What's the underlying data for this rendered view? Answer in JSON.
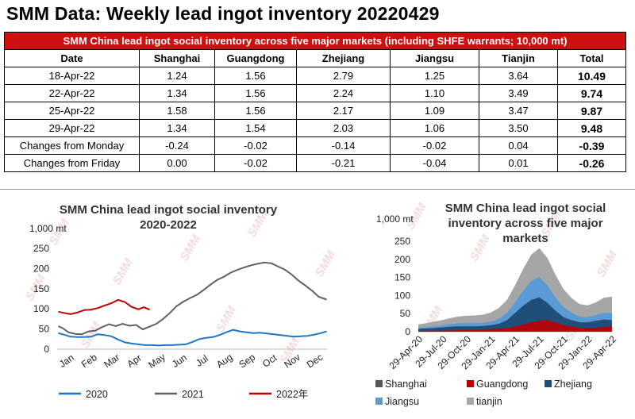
{
  "title": "SMM Data: Weekly lead ingot inventory 20220429",
  "table": {
    "banner": "SMM China lead ingot social inventory across five major markets (including SHFE warrants; 10,000 mt)",
    "headers": [
      "Date",
      "Shanghai",
      "Guangdong",
      "Zhejiang",
      "Jiangsu",
      "Tianjin",
      "Total"
    ],
    "rows": [
      [
        "18-Apr-22",
        "1.24",
        "1.56",
        "2.79",
        "1.25",
        "3.64",
        "10.49"
      ],
      [
        "22-Apr-22",
        "1.34",
        "1.56",
        "2.24",
        "1.10",
        "3.49",
        "9.74"
      ],
      [
        "25-Apr-22",
        "1.58",
        "1.56",
        "2.17",
        "1.09",
        "3.47",
        "9.87"
      ],
      [
        "29-Apr-22",
        "1.34",
        "1.54",
        "2.03",
        "1.06",
        "3.50",
        "9.48"
      ],
      [
        "Changes from Monday",
        "-0.24",
        "-0.02",
        "-0.14",
        "-0.02",
        "0.04",
        "-0.39"
      ],
      [
        "Changes from Friday",
        "0.00",
        "-0.02",
        "-0.21",
        "-0.04",
        "0.01",
        "-0.26"
      ]
    ]
  },
  "colors": {
    "banner": "#cc1111",
    "s2020": "#1f77c4",
    "s2021": "#606060",
    "s2022": "#c00000",
    "shanghai": "#595959",
    "guangdong": "#c00000",
    "zhejiang": "#1f4e79",
    "jiangsu": "#5b9bd5",
    "tianjin": "#a6a6a6"
  },
  "watermark": "SMM",
  "chart_data": [
    {
      "type": "line",
      "title": "SMM China lead ingot social inventory 2020-2022",
      "unit_label": "1,000 mt",
      "categories": [
        "Jan",
        "Feb",
        "Mar",
        "Apr",
        "May",
        "Jun",
        "Jul",
        "Aug",
        "Sep",
        "Oct",
        "Nov",
        "Dec"
      ],
      "ylim": [
        0,
        250
      ],
      "yticks": [
        "0",
        "50",
        "100",
        "150",
        "200",
        "250"
      ],
      "x_range": [
        0,
        12
      ],
      "series": [
        {
          "name": "2020",
          "x": [
            0.05,
            0.3,
            0.6,
            0.9,
            1.2,
            1.5,
            1.8,
            2.1,
            2.4,
            2.7,
            3.0,
            3.3,
            3.6,
            3.9,
            4.2,
            4.5,
            4.8,
            5.1,
            5.4,
            5.7,
            6.0,
            6.3,
            6.6,
            6.9,
            7.2,
            7.5,
            7.8,
            8.1,
            8.4,
            8.7,
            9.0,
            9.3,
            9.6,
            9.9,
            10.2,
            10.5,
            10.8,
            11.1,
            11.4,
            11.7,
            11.95
          ],
          "values": [
            40,
            36,
            31,
            30,
            30,
            31,
            37,
            35,
            32,
            24,
            17,
            14,
            12,
            10,
            10,
            9,
            10,
            10,
            11,
            12,
            18,
            25,
            28,
            30,
            35,
            42,
            48,
            44,
            42,
            40,
            41,
            39,
            37,
            35,
            33,
            31,
            32,
            33,
            36,
            40,
            44
          ]
        },
        {
          "name": "2021",
          "x": [
            0.05,
            0.25,
            0.5,
            0.8,
            1.1,
            1.4,
            1.7,
            2.0,
            2.3,
            2.6,
            2.9,
            3.2,
            3.5,
            3.8,
            4.1,
            4.4,
            4.7,
            5.0,
            5.3,
            5.6,
            5.9,
            6.2,
            6.5,
            6.8,
            7.1,
            7.4,
            7.7,
            8.0,
            8.3,
            8.6,
            8.9,
            9.2,
            9.5,
            9.8,
            10.1,
            10.4,
            10.7,
            11.0,
            11.3,
            11.6,
            11.95
          ],
          "values": [
            57,
            52,
            42,
            38,
            37,
            44,
            46,
            55,
            62,
            57,
            63,
            58,
            60,
            49,
            56,
            63,
            75,
            90,
            107,
            118,
            127,
            135,
            147,
            160,
            172,
            180,
            190,
            197,
            203,
            208,
            212,
            215,
            213,
            205,
            197,
            185,
            170,
            158,
            145,
            130,
            123
          ]
        },
        {
          "name": "2022年",
          "x": [
            0.05,
            0.3,
            0.6,
            0.9,
            1.2,
            1.5,
            1.8,
            2.1,
            2.4,
            2.7,
            3.0,
            3.3,
            3.6,
            3.85,
            4.1
          ],
          "values": [
            93,
            90,
            87,
            91,
            97,
            98,
            102,
            108,
            114,
            122,
            117,
            105,
            99,
            104,
            98
          ]
        }
      ],
      "legend": [
        "2020",
        "2021",
        "2022年"
      ],
      "legend_position": "bottom"
    },
    {
      "type": "area",
      "title": "SMM China lead ingot social inventory across five major markets",
      "unit_label": "1,000 mt",
      "categories": [
        "29-Apr-20",
        "29-Jul-20",
        "29-Oct-20",
        "29-Jan-21",
        "29-Apr-21",
        "29-Jul-21",
        "29-Oct-21",
        "29-Jan-22",
        "29-Apr-22"
      ],
      "ylim": [
        0,
        250
      ],
      "yticks": [
        "0",
        "50",
        "100",
        "150",
        "200",
        "250"
      ],
      "x_range": [
        0,
        24
      ],
      "x": [
        0,
        1,
        2,
        3,
        4,
        5,
        6,
        7,
        8,
        9,
        10,
        11,
        12,
        13,
        14,
        15,
        16,
        17,
        18,
        19,
        20,
        21,
        22,
        23,
        24
      ],
      "series": [
        {
          "name": "Shanghai",
          "values": [
            2,
            2,
            2,
            2,
            3,
            3,
            3,
            3,
            3,
            4,
            4,
            4,
            5,
            6,
            7,
            8,
            8,
            7,
            6,
            5,
            4,
            4,
            4,
            5,
            5
          ]
        },
        {
          "name": "Guangdong",
          "values": [
            2,
            3,
            3,
            3,
            4,
            4,
            5,
            5,
            6,
            7,
            8,
            10,
            14,
            20,
            26,
            30,
            32,
            26,
            18,
            14,
            11,
            11,
            11,
            13,
            15
          ]
        },
        {
          "name": "Zhejiang",
          "values": [
            8,
            9,
            10,
            12,
            14,
            15,
            15,
            15,
            16,
            18,
            22,
            32,
            52,
            72,
            88,
            95,
            80,
            58,
            40,
            32,
            26,
            26,
            30,
            34,
            32
          ]
        },
        {
          "name": "Jiangsu",
          "values": [
            3,
            4,
            5,
            6,
            7,
            8,
            9,
            9,
            9,
            10,
            14,
            20,
            30,
            42,
            52,
            56,
            48,
            36,
            28,
            20,
            15,
            14,
            16,
            18,
            20
          ]
        },
        {
          "name": "tianjin",
          "values": [
            5,
            6,
            8,
            9,
            10,
            12,
            12,
            13,
            13,
            14,
            18,
            22,
            28,
            34,
            40,
            42,
            36,
            30,
            26,
            22,
            20,
            18,
            20,
            24,
            25
          ]
        }
      ],
      "legend": [
        "Shanghai",
        "Guangdong",
        "Zhejiang",
        "Jiangsu",
        "tianjin"
      ],
      "legend_position": "bottom"
    }
  ]
}
